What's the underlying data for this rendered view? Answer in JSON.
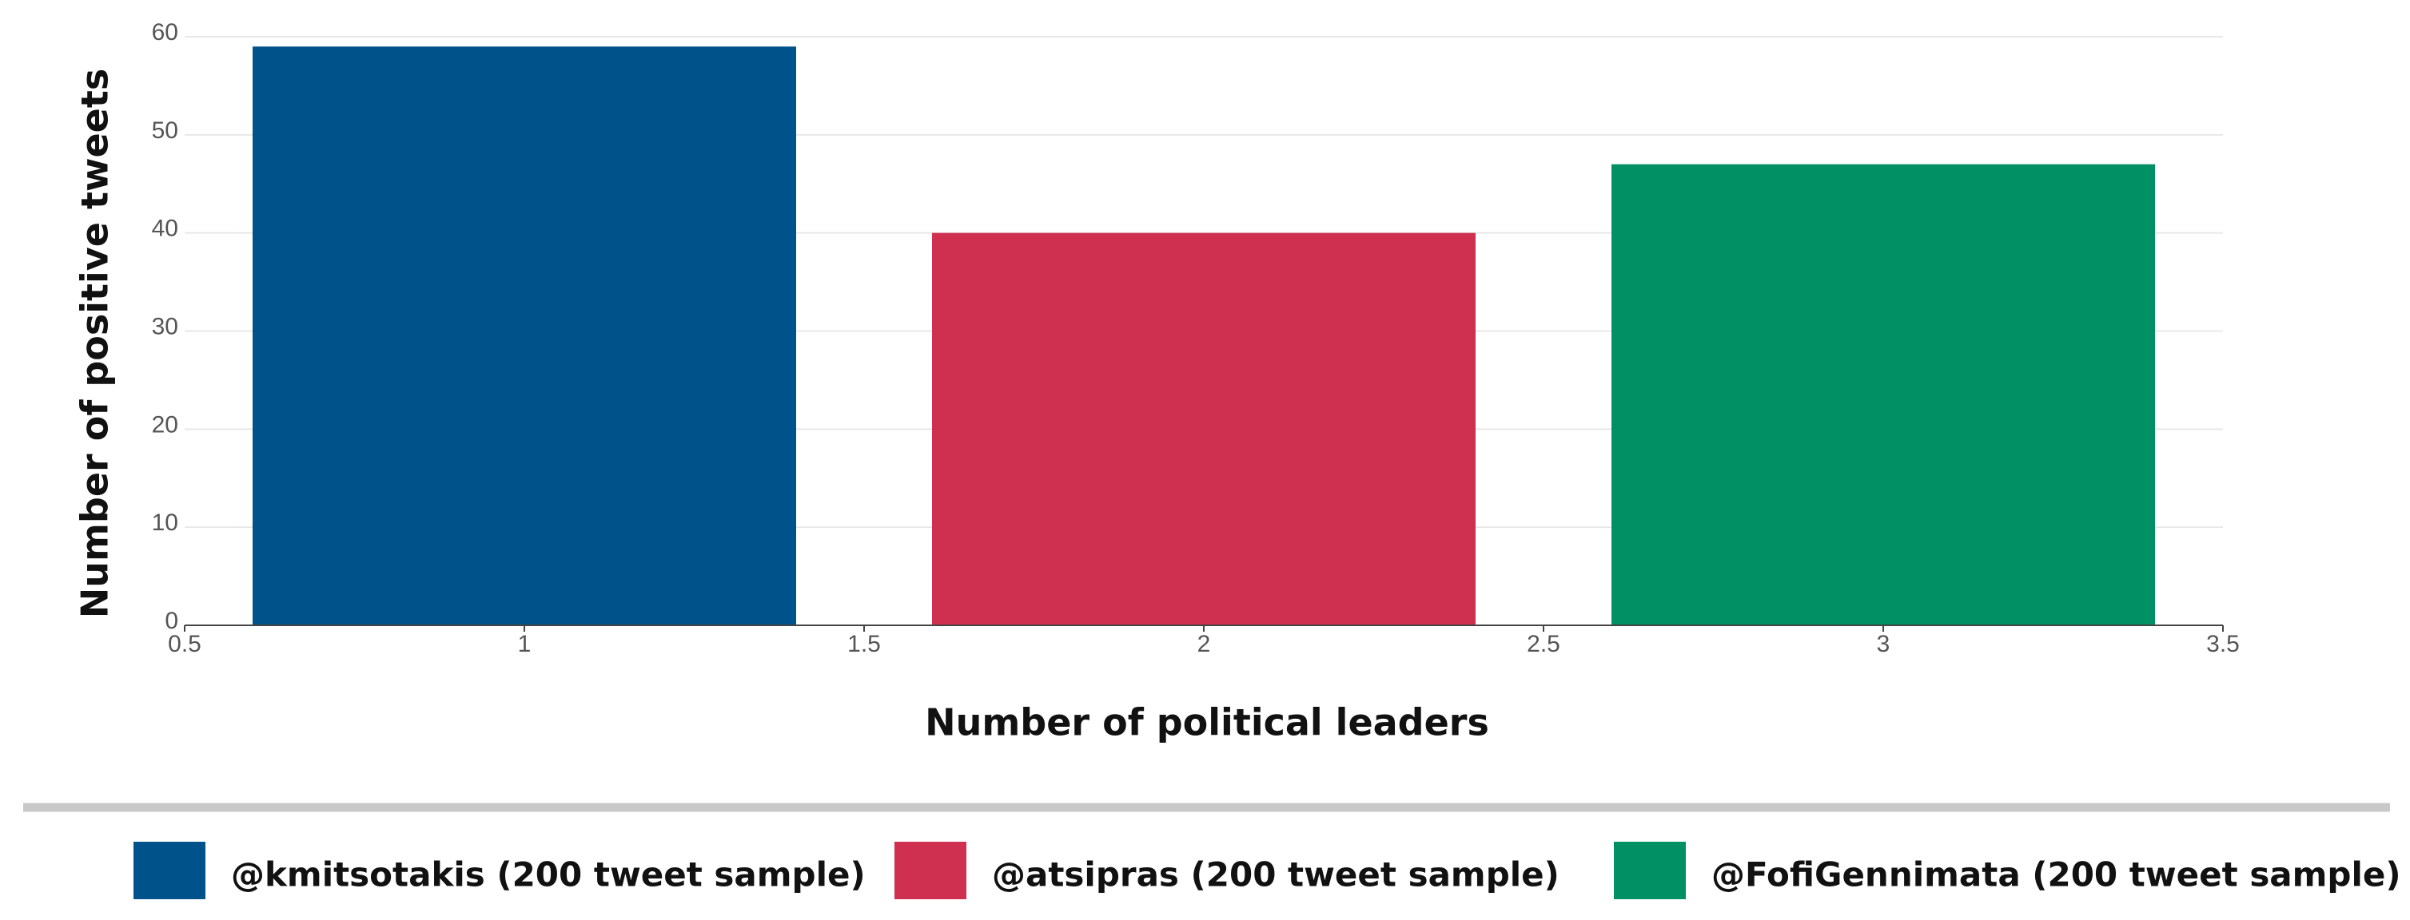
{
  "chart_data": {
    "type": "bar",
    "x_label": "Number of political leaders",
    "y_label": "Number of positive tweets",
    "x": [
      1,
      2,
      3
    ],
    "series": [
      {
        "name": "@kmitsotakis (200 tweet sample)",
        "color": "#00538a",
        "values": [
          59,
          null,
          null
        ]
      },
      {
        "name": "@atsipras (200 tweet sample)",
        "color": "#d0304f",
        "values": [
          null,
          40,
          null
        ]
      },
      {
        "name": "@FofiGennimata (200 tweet sample)",
        "color": "#009063",
        "values": [
          null,
          null,
          47
        ]
      }
    ],
    "xlim": [
      0.5,
      3.5
    ],
    "xticks": [
      0.5,
      1,
      1.5,
      2,
      2.5,
      3,
      3.5
    ],
    "ylim": [
      0,
      60
    ],
    "yticks": [
      0,
      10,
      20,
      30,
      40,
      50,
      60
    ],
    "grid": true,
    "legend": "bottom"
  }
}
